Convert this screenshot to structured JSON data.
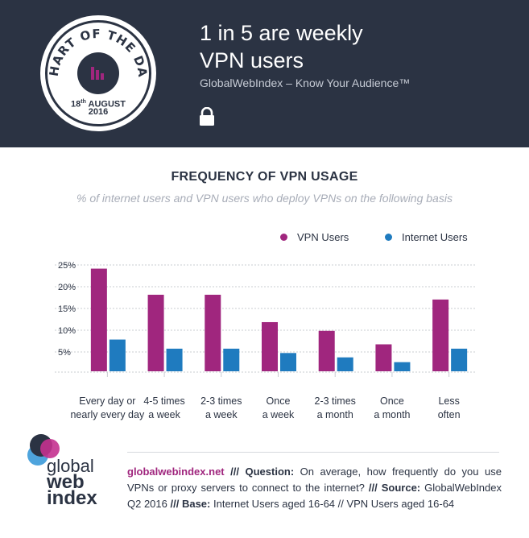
{
  "header": {
    "title_line1": "1 in 5 are weekly",
    "title_line2": "VPN users",
    "tagline": "GlobalWebIndex – Know Your Audience™",
    "badge_text": "CHART OF THE DAY",
    "badge_day": "18",
    "badge_day_suffix": "th",
    "badge_month": "AUGUST",
    "badge_year": "2016",
    "lock_icon": "lock-icon"
  },
  "colors": {
    "header_bg": "#2b3343",
    "vpn": "#a0267e",
    "internet": "#1f7bbf"
  },
  "chart_data": {
    "type": "bar",
    "title": "FREQUENCY OF VPN USAGE",
    "subtitle": "% of internet users and VPN users who deploy VPNs on the following basis",
    "categories": [
      [
        "Every day or",
        "nearly every day"
      ],
      [
        "4-5 times",
        "a week"
      ],
      [
        "2-3 times",
        "a week"
      ],
      [
        "Once",
        "a week"
      ],
      [
        "2-3 times",
        "a month"
      ],
      [
        "Once",
        "a month"
      ],
      [
        "Less",
        "often"
      ]
    ],
    "series": [
      {
        "name": "VPN Users",
        "values": [
          23.6,
          17.6,
          17.6,
          11.3,
          9.3,
          6.2,
          16.5
        ]
      },
      {
        "name": "Internet Users",
        "values": [
          7.3,
          5.2,
          5.2,
          4.2,
          3.2,
          2.1,
          5.2
        ]
      }
    ],
    "y_ticks": [
      "5%",
      "10%",
      "15%",
      "20%",
      "25%"
    ],
    "ylim": [
      0,
      25
    ],
    "grid": true,
    "legend_position": "top-right"
  },
  "footer": {
    "logo_line1": "global",
    "logo_line2": "web",
    "logo_line3": "index",
    "site": "globalwebindex.net",
    "sep1": " /// ",
    "question_label": "Question:",
    "question": " On average, how frequently do you use VPNs or proxy servers to connect to the internet? ",
    "sep2": "/// ",
    "source_label": "Source:",
    "source": " GlobalWebIndex Q2 2016 ",
    "sep3": "/// ",
    "base_label": "Base:",
    "base": " Internet Users aged 16-64 // VPN Users aged 16-64"
  }
}
